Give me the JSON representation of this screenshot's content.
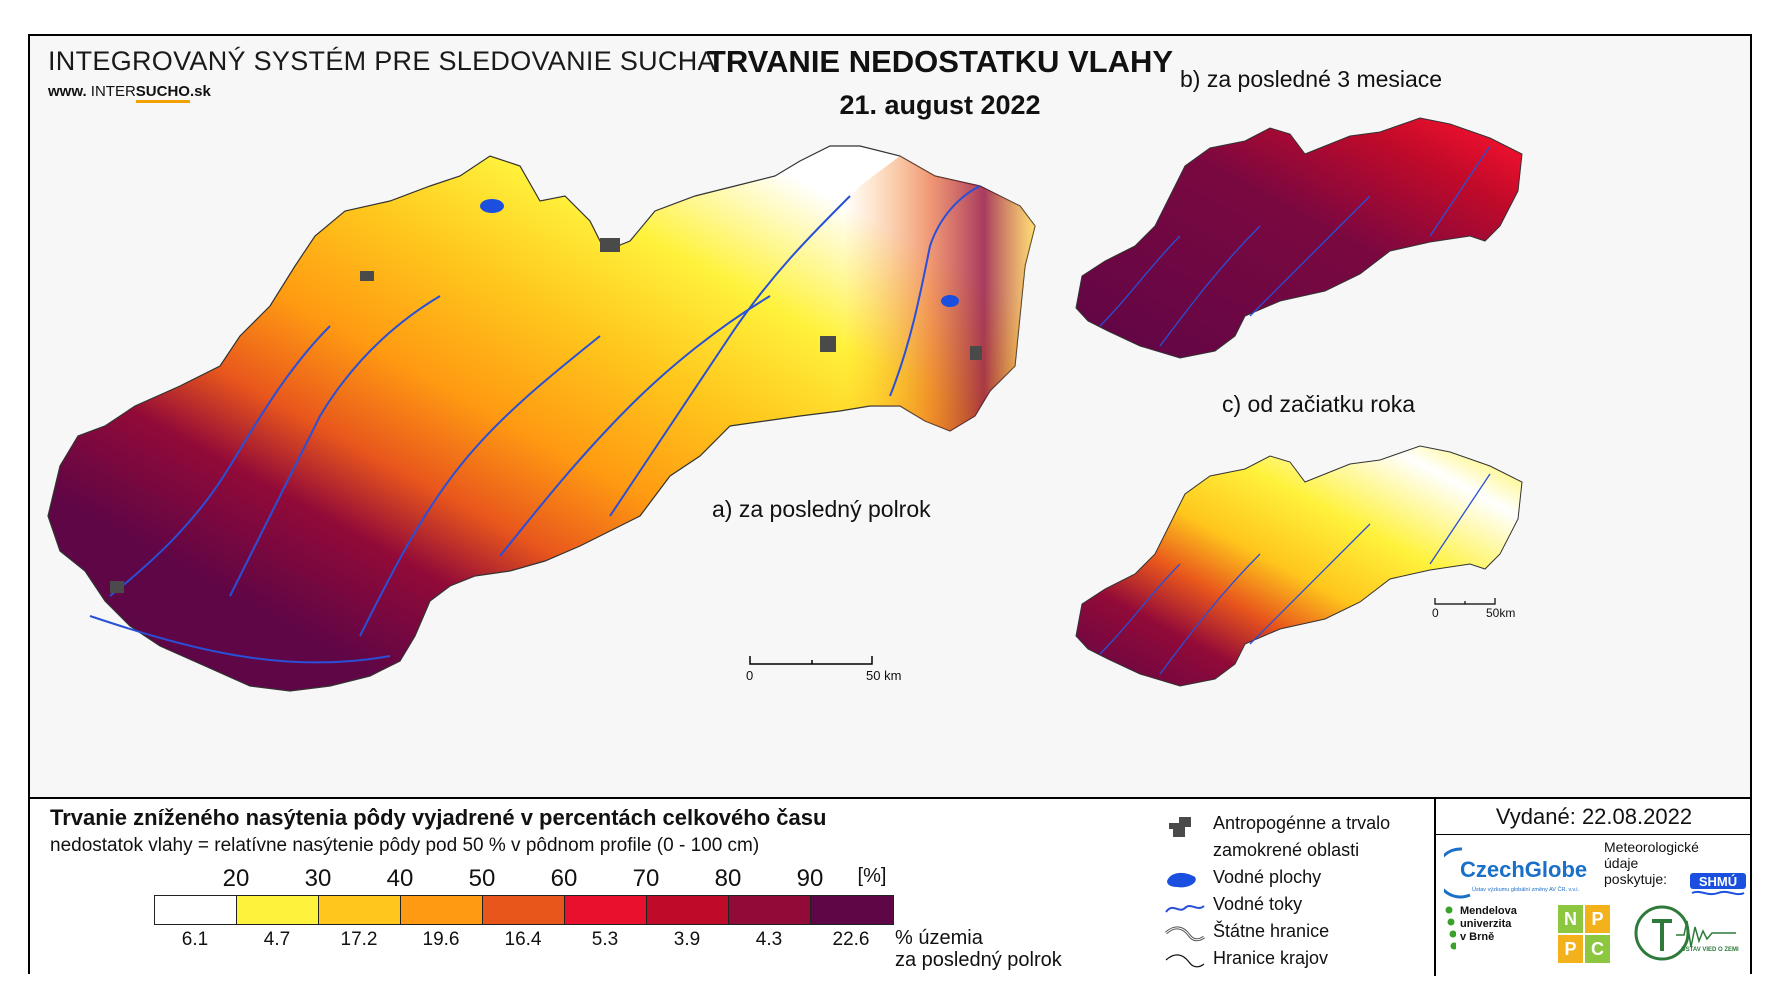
{
  "header": {
    "org_name": "INTEGROVANÝ SYSTÉM PRE SLEDOVANIE SUCHA",
    "website_prefix": "www.",
    "website_mid": "INTER",
    "website_accent": "SUCHO",
    "website_suffix": ".sk"
  },
  "map": {
    "title": "TRVANIE NEDOSTATKU VLAHY",
    "date": "21. august 2022",
    "panel_a_label": "a) za posledný polrok",
    "panel_b_label": "b) za posledné 3 mesiace",
    "panel_c_label": "c) od začiatku roka",
    "scale_main": {
      "start": "0",
      "end": "50 km"
    },
    "scale_small": {
      "start": "0",
      "end": "50km"
    }
  },
  "legend": {
    "title": "Trvanie zníženého nasýtenia pôdy vyjadrené v percentách celkového času",
    "subtitle": "nedostatok vlahy = relatívne nasýtenie pôdy pod 50 % v pôdnom profile (0 - 100 cm)",
    "ticks": [
      "20",
      "30",
      "40",
      "50",
      "60",
      "70",
      "80",
      "90",
      "[%]"
    ],
    "colors": [
      "#ffffff",
      "#fff23c",
      "#ffc61c",
      "#ff9a12",
      "#e8561c",
      "#e8102c",
      "#c00a2a",
      "#920a38",
      "#5f0646"
    ],
    "territory_percent": [
      "6.1",
      "4.7",
      "17.2",
      "19.6",
      "16.4",
      "5.3",
      "3.9",
      "4.3",
      "22.6"
    ],
    "territory_label_1": "% územia",
    "territory_label_2": "za posledný polrok"
  },
  "symbols": {
    "items": [
      {
        "label": "Antropogénne a trvalo",
        "icon": "anthropogenic-area-icon"
      },
      {
        "label": "zamokrené oblasti",
        "icon": ""
      },
      {
        "label": "Vodné plochy",
        "icon": "water-body-icon"
      },
      {
        "label": "Vodné toky",
        "icon": "water-stream-icon"
      },
      {
        "label": "Štátne hranice",
        "icon": "state-border-icon"
      },
      {
        "label": "Hranice krajov",
        "icon": "region-border-icon"
      }
    ],
    "colors": {
      "anthropogenic": "#4a4a4a",
      "water": "#1a4fe0",
      "stream": "#2850d8"
    }
  },
  "footer": {
    "issued": "Vydané: 22.08.2022",
    "czechglobe_name": "CzechGlobe",
    "czechglobe_sub": "Ústav výzkumu globální změny AV ČR, v.v.i.",
    "meteo_line1": "Meteorologické",
    "meteo_line2": "údaje",
    "meteo_line3": "poskytuje:",
    "shmu": "SHMÚ",
    "mendel_1": "Mendelova",
    "mendel_2": "univerzita",
    "mendel_3": "v Brně",
    "nppc": [
      "N",
      "P",
      "P",
      "C"
    ],
    "uvz_1": "ÚSTAV VIED O ZEMI"
  }
}
